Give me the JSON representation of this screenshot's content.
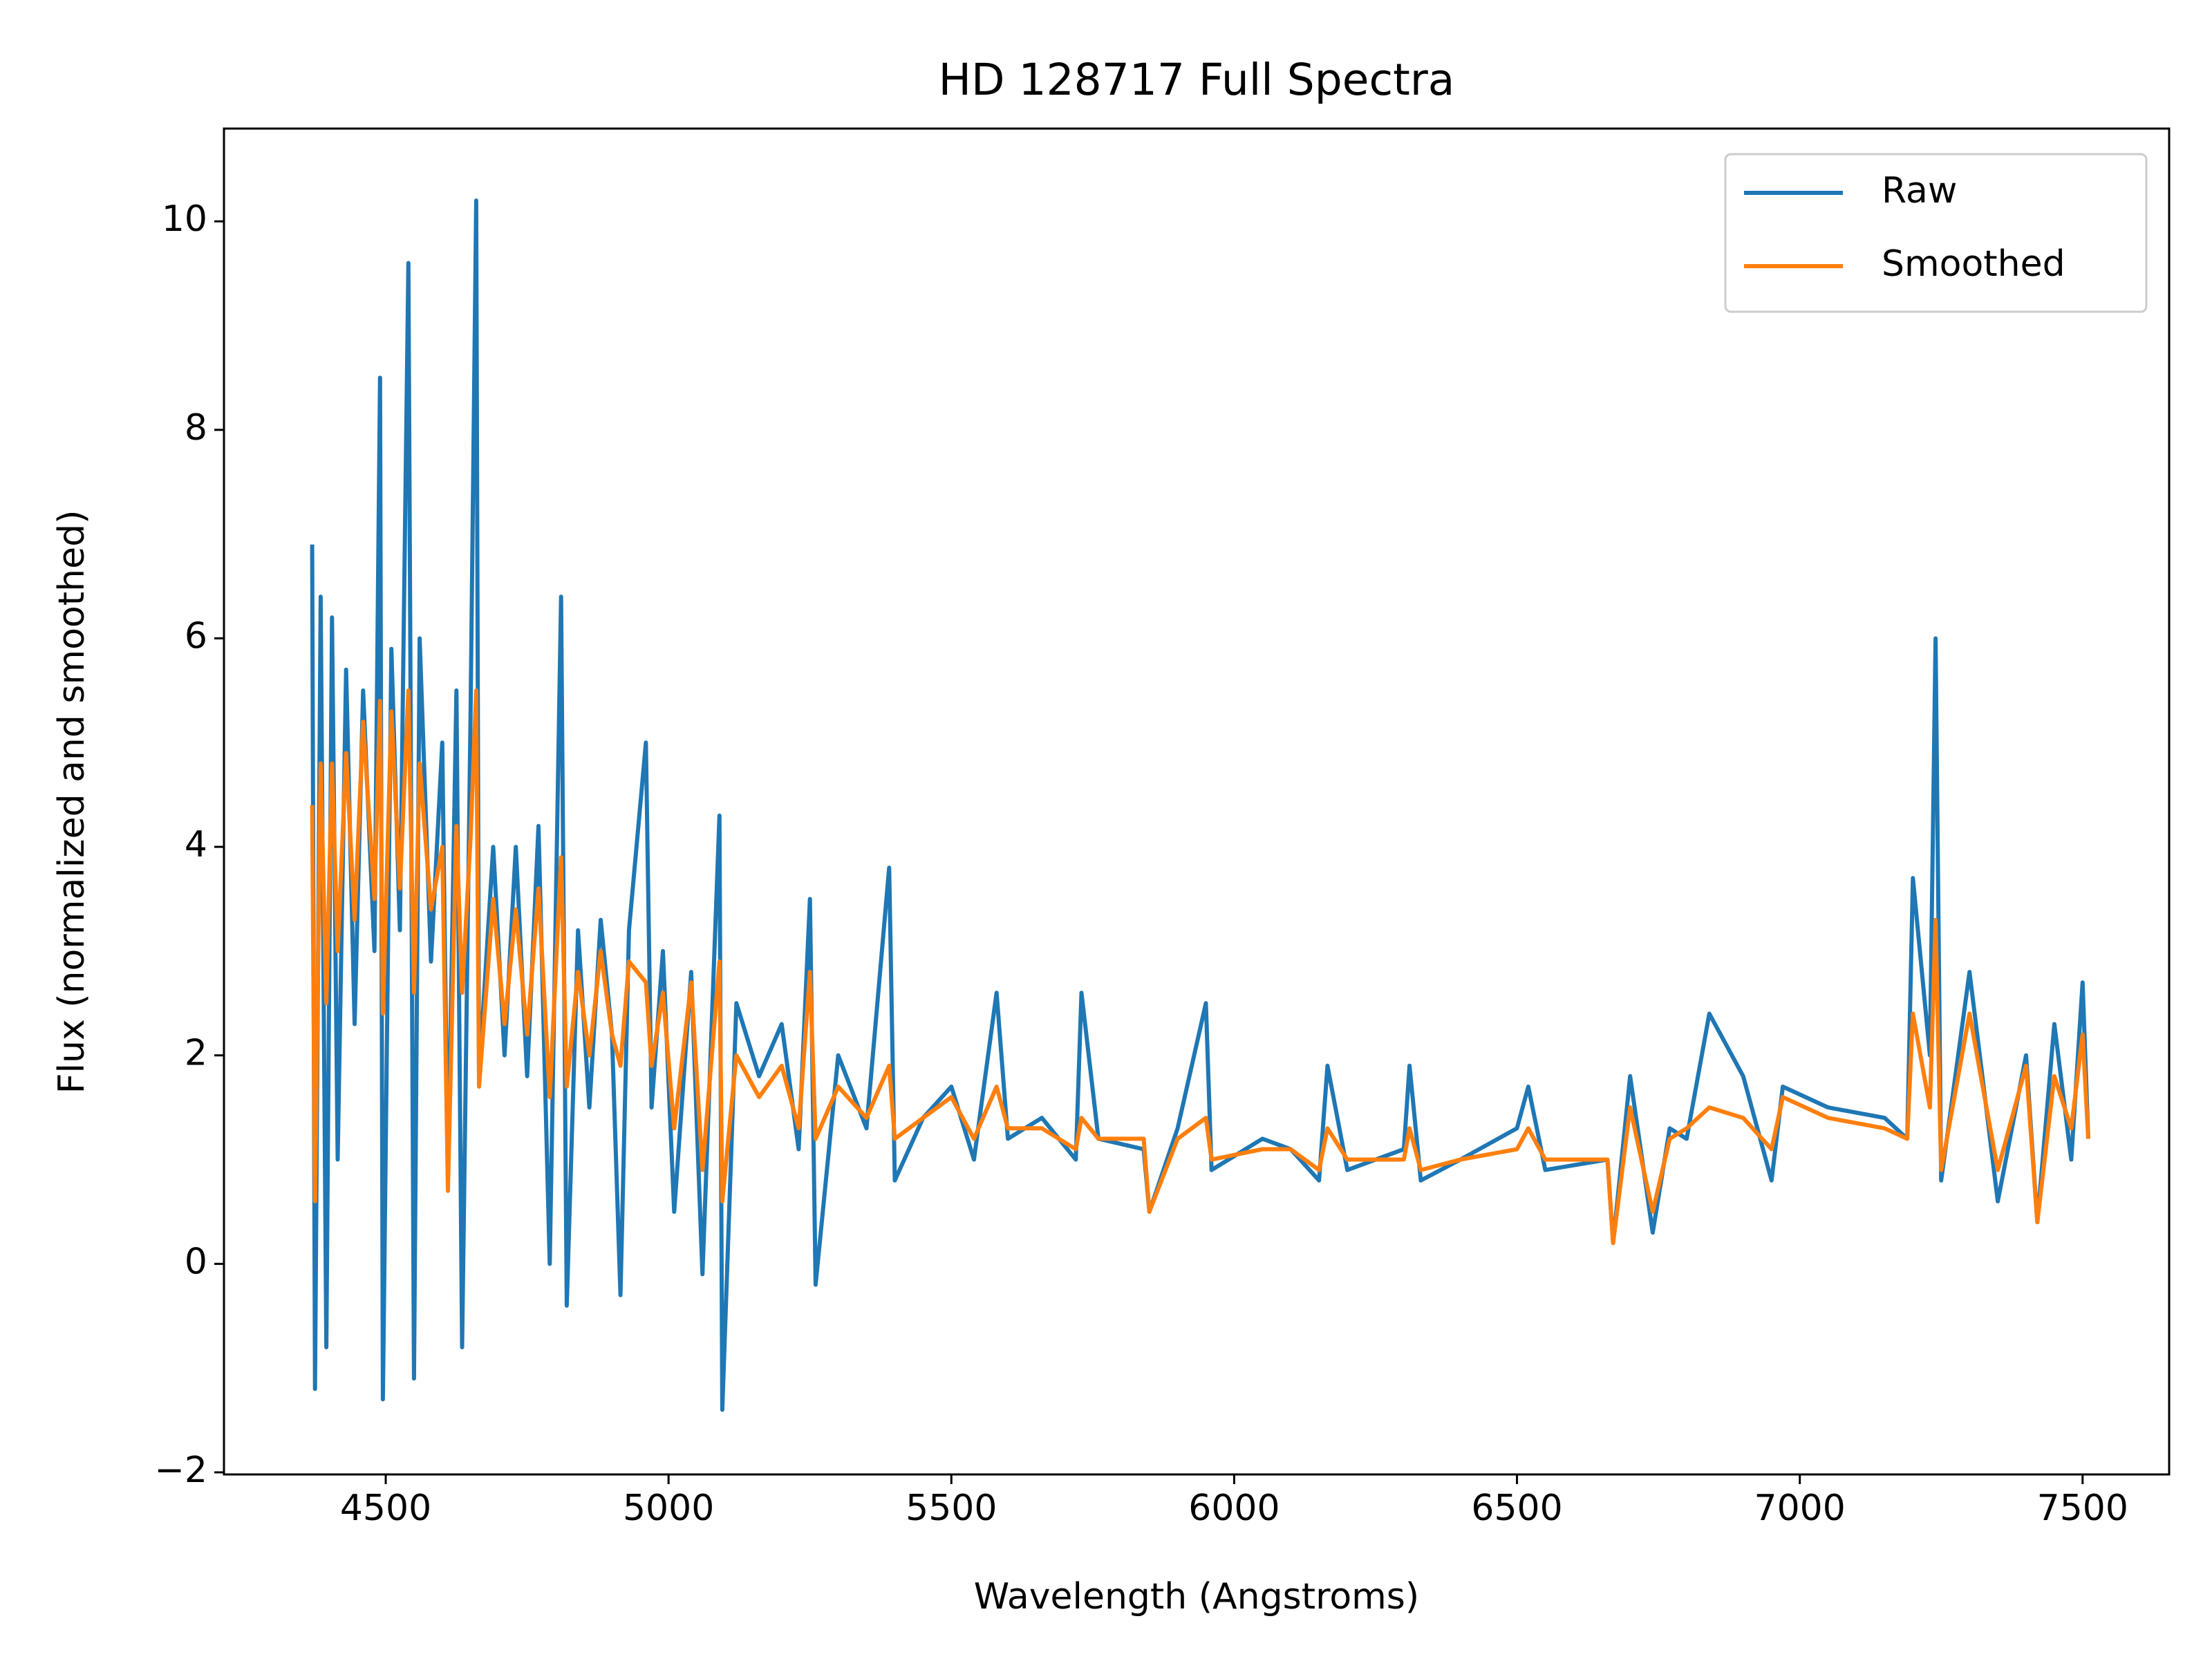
{
  "chart_data": {
    "type": "line",
    "title": "HD 128717 Full Spectra",
    "xlabel": "Wavelength (Angstroms)",
    "ylabel": "Flux (normalized and smoothed)",
    "x": [
      4370,
      4375,
      4385,
      4395,
      4405,
      4415,
      4430,
      4445,
      4460,
      4480,
      4490,
      4495,
      4510,
      4525,
      4540,
      4550,
      4560,
      4580,
      4600,
      4610,
      4625,
      4635,
      4650,
      4660,
      4665,
      4690,
      4710,
      4730,
      4750,
      4770,
      4790,
      4810,
      4820,
      4840,
      4860,
      4880,
      4900,
      4915,
      4930,
      4960,
      4970,
      4990,
      5010,
      5040,
      5060,
      5090,
      5095,
      5120,
      5160,
      5200,
      5230,
      5250,
      5260,
      5300,
      5350,
      5390,
      5400,
      5450,
      5500,
      5540,
      5580,
      5600,
      5660,
      5720,
      5730,
      5760,
      5840,
      5850,
      5900,
      5950,
      5960,
      6050,
      6100,
      6150,
      6165,
      6200,
      6300,
      6310,
      6330,
      6400,
      6500,
      6520,
      6550,
      6660,
      6670,
      6700,
      6740,
      6770,
      6800,
      6840,
      6900,
      6950,
      6970,
      7050,
      7150,
      7190,
      7200,
      7230,
      7240,
      7250,
      7300,
      7350,
      7400,
      7420,
      7450,
      7480,
      7500,
      7510
    ],
    "series": [
      {
        "name": "Raw",
        "color": "#1f77b4",
        "values": [
          6.9,
          -1.2,
          6.4,
          -0.8,
          6.2,
          1.0,
          5.7,
          2.3,
          5.5,
          3.0,
          8.5,
          -1.3,
          5.9,
          3.2,
          9.6,
          -1.1,
          6.0,
          2.9,
          5.0,
          0.8,
          5.5,
          -0.8,
          5.3,
          10.2,
          1.8,
          4.0,
          2.0,
          4.0,
          1.8,
          4.2,
          0.0,
          6.4,
          -0.4,
          3.2,
          1.5,
          3.3,
          2.2,
          -0.3,
          3.2,
          5.0,
          1.5,
          3.0,
          0.5,
          2.8,
          -0.1,
          4.3,
          -1.4,
          2.5,
          1.8,
          2.3,
          1.1,
          3.5,
          -0.2,
          2.0,
          1.3,
          3.8,
          0.8,
          1.4,
          1.7,
          1.0,
          2.6,
          1.2,
          1.4,
          1.0,
          2.6,
          1.2,
          1.1,
          0.5,
          1.3,
          2.5,
          0.9,
          1.2,
          1.1,
          0.8,
          1.9,
          0.9,
          1.1,
          1.9,
          0.8,
          1.0,
          1.3,
          1.7,
          0.9,
          1.0,
          0.2,
          1.8,
          0.3,
          1.3,
          1.2,
          2.4,
          1.8,
          0.8,
          1.7,
          1.5,
          1.4,
          1.2,
          3.7,
          2.0,
          6.0,
          0.8,
          2.8,
          0.6,
          2.0,
          0.4,
          2.3,
          1.0,
          2.7,
          1.2
        ]
      },
      {
        "name": "Smoothed",
        "color": "#ff7f0e",
        "values": [
          4.4,
          0.6,
          4.8,
          2.5,
          4.8,
          3.0,
          4.9,
          3.3,
          5.2,
          3.5,
          5.4,
          2.4,
          5.3,
          3.6,
          5.5,
          2.6,
          4.8,
          3.4,
          4.0,
          0.7,
          4.2,
          2.6,
          4.1,
          5.5,
          1.7,
          3.5,
          2.3,
          3.4,
          2.2,
          3.6,
          1.6,
          3.9,
          1.7,
          2.8,
          2.0,
          3.0,
          2.2,
          1.9,
          2.9,
          2.7,
          1.9,
          2.6,
          1.3,
          2.7,
          0.9,
          2.9,
          0.6,
          2.0,
          1.6,
          1.9,
          1.3,
          2.8,
          1.2,
          1.7,
          1.4,
          1.9,
          1.2,
          1.4,
          1.6,
          1.2,
          1.7,
          1.3,
          1.3,
          1.1,
          1.4,
          1.2,
          1.2,
          0.5,
          1.2,
          1.4,
          1.0,
          1.1,
          1.1,
          0.9,
          1.3,
          1.0,
          1.0,
          1.3,
          0.9,
          1.0,
          1.1,
          1.3,
          1.0,
          1.0,
          0.2,
          1.5,
          0.5,
          1.2,
          1.3,
          1.5,
          1.4,
          1.1,
          1.6,
          1.4,
          1.3,
          1.2,
          2.4,
          1.5,
          3.3,
          0.9,
          2.4,
          0.9,
          1.9,
          0.4,
          1.8,
          1.3,
          2.2,
          1.2
        ]
      }
    ],
    "xlim": [
      4214,
      7653
    ],
    "ylim": [
      -2.02,
      10.89
    ],
    "xticks": [
      4500,
      5000,
      5500,
      6000,
      6500,
      7000,
      7500
    ],
    "yticks": [
      {
        "value": -2,
        "label": "−2"
      },
      0,
      2,
      4,
      6,
      8,
      10
    ],
    "legend": "upper right"
  }
}
